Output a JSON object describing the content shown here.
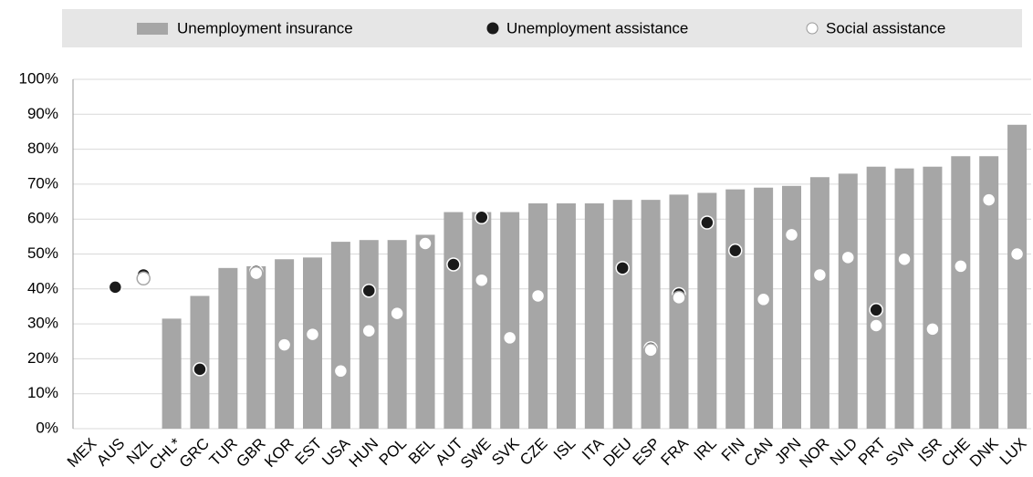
{
  "chart_data": {
    "type": "bar",
    "categories": [
      "MEX",
      "AUS",
      "NZL",
      "CHL*",
      "GRC",
      "TUR",
      "GBR",
      "KOR",
      "EST",
      "USA",
      "HUN",
      "POL",
      "BEL",
      "AUT",
      "SWE",
      "SVK",
      "CZE",
      "ISL",
      "ITA",
      "DEU",
      "ESP",
      "FRA",
      "IRL",
      "FIN",
      "CAN",
      "JPN",
      "NOR",
      "NLD",
      "PRT",
      "SVN",
      "ISR",
      "CHE",
      "DNK",
      "LUX"
    ],
    "series": [
      {
        "name": "Unemployment insurance",
        "color": "#a6a6a6",
        "kind": "bar",
        "values": [
          null,
          null,
          null,
          31.5,
          38,
          46,
          46.5,
          48.5,
          49,
          53.5,
          54,
          54,
          55.5,
          62,
          62,
          62,
          64.5,
          64.5,
          64.5,
          65.5,
          65.5,
          67,
          67.5,
          68.5,
          69,
          69.5,
          72,
          73,
          75,
          74.5,
          75,
          78,
          78,
          87
        ]
      },
      {
        "name": "Unemployment assistance",
        "color": "#1a1a1a",
        "kind": "dot",
        "values": [
          null,
          40.5,
          44,
          null,
          17,
          null,
          45,
          null,
          null,
          null,
          39.5,
          null,
          null,
          47,
          60.5,
          null,
          null,
          null,
          null,
          46,
          23,
          38.5,
          59,
          51,
          null,
          null,
          null,
          null,
          34,
          null,
          null,
          null,
          null,
          null
        ]
      },
      {
        "name": "Social assistance",
        "color": "#ffffff",
        "kind": "dot",
        "values": [
          null,
          null,
          43,
          null,
          null,
          null,
          44.5,
          24,
          27,
          16.5,
          28,
          33,
          53,
          null,
          42.5,
          26,
          38,
          null,
          null,
          null,
          22.5,
          37.5,
          null,
          null,
          37,
          55.5,
          44,
          49,
          29.5,
          48.5,
          28.5,
          46.5,
          65.5,
          50
        ]
      }
    ],
    "ylim": [
      0,
      100
    ],
    "yticks": [
      {
        "value": 0,
        "label": "0%"
      },
      {
        "value": 10,
        "label": "10%"
      },
      {
        "value": 20,
        "label": "20%"
      },
      {
        "value": 30,
        "label": "30%"
      },
      {
        "value": 40,
        "label": "40%"
      },
      {
        "value": 50,
        "label": "50%"
      },
      {
        "value": 60,
        "label": "60%"
      },
      {
        "value": 70,
        "label": "70%"
      },
      {
        "value": 80,
        "label": "80%"
      },
      {
        "value": 90,
        "label": "90%"
      },
      {
        "value": 100,
        "label": "100%"
      }
    ],
    "grid": true,
    "legend": "top"
  }
}
